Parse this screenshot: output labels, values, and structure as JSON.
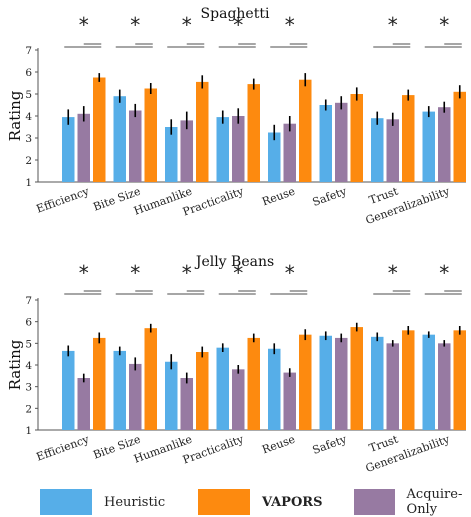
{
  "chart_data": [
    {
      "type": "bar",
      "title": "Spaghetti",
      "ylabel": "Rating",
      "xlabel": "",
      "ylim": [
        1,
        7
      ],
      "yticks": [
        1,
        2,
        3,
        4,
        5,
        6,
        7
      ],
      "categories": [
        "Efficiency",
        "Bite Size",
        "Humanlike",
        "Practicality",
        "Reuse",
        "Safety",
        "Trust",
        "Generalizability"
      ],
      "series": [
        {
          "name": "Heuristic",
          "color": "#56aee8",
          "values": [
            3.95,
            4.9,
            3.5,
            3.95,
            3.25,
            4.5,
            3.9,
            4.2
          ],
          "errors": [
            0.35,
            0.3,
            0.35,
            0.3,
            0.35,
            0.25,
            0.3,
            0.25
          ]
        },
        {
          "name": "VAPORS",
          "color": "#fd8a0f",
          "values": [
            5.75,
            5.25,
            5.55,
            5.45,
            5.65,
            5.0,
            4.95,
            5.1
          ],
          "errors": [
            0.2,
            0.25,
            0.3,
            0.25,
            0.3,
            0.3,
            0.25,
            0.3
          ]
        },
        {
          "name": "Acquire-Only",
          "color": "#977aa2",
          "values": [
            4.1,
            4.25,
            3.8,
            4.0,
            3.65,
            4.6,
            3.85,
            4.4
          ],
          "errors": [
            0.35,
            0.3,
            0.4,
            0.35,
            0.35,
            0.3,
            0.3,
            0.25
          ]
        }
      ],
      "significance": [
        "*",
        "*",
        "*",
        "*",
        "*",
        "",
        "*",
        "*"
      ]
    },
    {
      "type": "bar",
      "title": "Jelly Beans",
      "ylabel": "Rating",
      "xlabel": "",
      "ylim": [
        1,
        7
      ],
      "yticks": [
        1,
        2,
        3,
        4,
        5,
        6,
        7
      ],
      "categories": [
        "Efficiency",
        "Bite Size",
        "Humanlike",
        "Practicality",
        "Reuse",
        "Safety",
        "Trust",
        "Generalizability"
      ],
      "series": [
        {
          "name": "Heuristic",
          "color": "#56aee8",
          "values": [
            4.65,
            4.65,
            4.15,
            4.8,
            4.75,
            5.35,
            5.3,
            5.4
          ],
          "errors": [
            0.25,
            0.2,
            0.35,
            0.2,
            0.25,
            0.2,
            0.2,
            0.15
          ]
        },
        {
          "name": "VAPORS",
          "color": "#fd8a0f",
          "values": [
            5.25,
            5.7,
            4.6,
            5.25,
            5.4,
            5.75,
            5.6,
            5.6
          ],
          "errors": [
            0.25,
            0.2,
            0.25,
            0.2,
            0.25,
            0.2,
            0.2,
            0.2
          ]
        },
        {
          "name": "Acquire-Only",
          "color": "#977aa2",
          "values": [
            3.4,
            4.05,
            3.4,
            3.8,
            3.65,
            5.25,
            5.0,
            5.0
          ],
          "errors": [
            0.2,
            0.3,
            0.25,
            0.2,
            0.2,
            0.2,
            0.15,
            0.15
          ]
        }
      ],
      "significance": [
        "*",
        "*",
        "*",
        "*",
        "*",
        "",
        "*",
        "*"
      ]
    }
  ],
  "legend": {
    "items": [
      {
        "label": "Heuristic",
        "color": "#56aee8",
        "bold": false
      },
      {
        "label": "VAPORS",
        "color": "#fd8a0f",
        "bold": true
      },
      {
        "label": "Acquire-Only",
        "color": "#977aa2",
        "bold": false
      }
    ]
  }
}
